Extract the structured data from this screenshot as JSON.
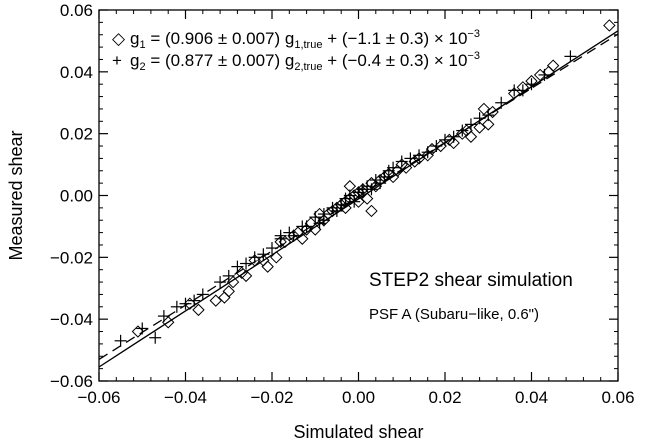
{
  "chart_data": {
    "type": "scatter",
    "xlabel": "Simulated shear",
    "ylabel": "Measured shear",
    "xlim": [
      -0.06,
      0.06
    ],
    "ylim": [
      -0.06,
      0.06
    ],
    "xticks": [
      "−0.06",
      "−0.04",
      "−0.02",
      "0.00",
      "0.02",
      "0.04",
      "0.06"
    ],
    "yticks": [
      "−0.06",
      "−0.04",
      "−0.02",
      "0.00",
      "0.02",
      "0.04",
      "0.06"
    ],
    "xtick_values": [
      -0.06,
      -0.04,
      -0.02,
      0.0,
      0.02,
      0.04,
      0.06
    ],
    "ytick_values": [
      -0.06,
      -0.04,
      -0.02,
      0.0,
      0.02,
      0.04,
      0.06
    ],
    "grid": false,
    "legend_placement": "top-left",
    "legend": [
      {
        "marker": "diamond",
        "symbol": "◇",
        "prefix": "g",
        "sub": "1",
        "mid": " = (0.906 ± 0.007) g",
        "sub2": "1,true",
        "tail": " + (−1.1 ± 0.3) × 10",
        "sup": "−3"
      },
      {
        "marker": "plus",
        "symbol": "+",
        "prefix": "g",
        "sub": "2",
        "mid": " = (0.877 ± 0.007) g",
        "sub2": "2,true",
        "tail": " + (−0.4 ± 0.3) × 10",
        "sup": "−3"
      }
    ],
    "annotations": {
      "title": "STEP2 shear simulation",
      "subtitle": "PSF A (Subaru−like, 0.6\")"
    },
    "fits": [
      {
        "style": "solid",
        "slope": 0.906,
        "intercept": -0.0011
      },
      {
        "style": "dashed",
        "slope": 0.877,
        "intercept": -0.0004
      }
    ],
    "series": [
      {
        "marker": "diamond",
        "x": [
          -0.051,
          -0.044,
          -0.039,
          -0.037,
          -0.033,
          -0.031,
          -0.03,
          -0.029,
          -0.027,
          -0.026,
          -0.024,
          -0.022,
          -0.021,
          -0.019,
          -0.018,
          -0.017,
          -0.015,
          -0.014,
          -0.013,
          -0.012,
          -0.011,
          -0.01,
          -0.009,
          -0.008,
          -0.007,
          -0.006,
          -0.005,
          -0.004,
          -0.003,
          -0.002,
          -0.001,
          0.0,
          0.001,
          0.002,
          0.003,
          0.004,
          0.005,
          0.006,
          0.007,
          0.008,
          0.01,
          0.011,
          0.013,
          0.014,
          0.016,
          0.017,
          0.019,
          0.021,
          0.022,
          0.024,
          0.025,
          0.026,
          0.028,
          0.029,
          0.03,
          0.031,
          0.036,
          0.038,
          0.04,
          0.042,
          0.044,
          0.045,
          0.058,
          0.0,
          0.003,
          -0.002,
          0.001,
          -0.003,
          0.009
        ],
        "y": [
          -0.044,
          -0.041,
          -0.035,
          -0.037,
          -0.034,
          -0.033,
          -0.031,
          -0.028,
          -0.025,
          -0.026,
          -0.021,
          -0.021,
          -0.023,
          -0.02,
          -0.015,
          -0.015,
          -0.013,
          -0.012,
          -0.014,
          -0.011,
          -0.009,
          -0.011,
          -0.006,
          -0.008,
          -0.006,
          -0.005,
          -0.004,
          -0.003,
          -0.002,
          -0.001,
          0.0,
          0.001,
          0.002,
          -0.001,
          0.004,
          0.003,
          0.005,
          0.006,
          0.007,
          0.006,
          0.01,
          0.009,
          0.011,
          0.012,
          0.013,
          0.015,
          0.016,
          0.018,
          0.017,
          0.02,
          0.021,
          0.019,
          0.022,
          0.028,
          0.023,
          0.027,
          0.033,
          0.035,
          0.037,
          0.039,
          0.04,
          0.042,
          0.055,
          -0.002,
          -0.005,
          0.003,
          0.001,
          -0.004,
          0.008
        ]
      },
      {
        "marker": "plus",
        "x": [
          -0.055,
          -0.05,
          -0.047,
          -0.045,
          -0.042,
          -0.04,
          -0.038,
          -0.036,
          -0.032,
          -0.03,
          -0.028,
          -0.026,
          -0.024,
          -0.022,
          -0.02,
          -0.018,
          -0.016,
          -0.015,
          -0.013,
          -0.012,
          -0.01,
          -0.009,
          -0.008,
          -0.006,
          -0.005,
          -0.004,
          -0.003,
          -0.002,
          -0.001,
          0.0,
          0.001,
          0.002,
          0.003,
          0.004,
          0.005,
          0.006,
          0.007,
          0.008,
          0.01,
          0.012,
          0.014,
          0.016,
          0.018,
          0.02,
          0.022,
          0.024,
          0.026,
          0.028,
          0.03,
          0.033,
          0.036,
          0.038,
          0.04,
          0.043,
          0.049,
          -0.008,
          -0.018
        ],
        "y": [
          -0.047,
          -0.043,
          -0.046,
          -0.039,
          -0.036,
          -0.035,
          -0.034,
          -0.032,
          -0.028,
          -0.026,
          -0.023,
          -0.022,
          -0.02,
          -0.019,
          -0.017,
          -0.014,
          -0.012,
          -0.013,
          -0.01,
          -0.01,
          -0.007,
          -0.009,
          -0.006,
          -0.004,
          -0.005,
          -0.003,
          -0.001,
          0.0,
          -0.002,
          0.001,
          0.002,
          0.003,
          0.002,
          0.005,
          0.004,
          0.006,
          0.008,
          0.009,
          0.011,
          0.012,
          0.013,
          0.014,
          0.016,
          0.018,
          0.019,
          0.021,
          0.023,
          0.025,
          0.026,
          0.03,
          0.034,
          0.034,
          0.036,
          0.039,
          0.045,
          -0.008,
          -0.013
        ]
      }
    ]
  }
}
